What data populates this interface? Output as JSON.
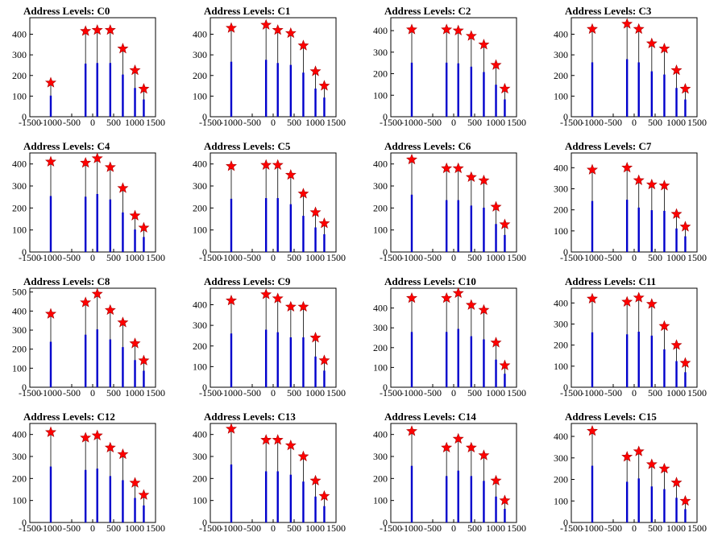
{
  "chart_data": [
    {
      "type": "bar",
      "title": "Address Levels: C0",
      "xlim": [
        -1500,
        1500
      ],
      "ylim": [
        0,
        480
      ],
      "yticks": [
        0,
        100,
        200,
        300,
        400
      ],
      "xticks": [
        -1500,
        -1000,
        -500,
        0,
        500,
        1000,
        1500
      ],
      "peaks": [
        {
          "x": -1000,
          "y": 165
        },
        {
          "x": -170,
          "y": 415
        },
        {
          "x": 110,
          "y": 420
        },
        {
          "x": 420,
          "y": 420
        },
        {
          "x": 720,
          "y": 330
        },
        {
          "x": 1010,
          "y": 225
        },
        {
          "x": 1220,
          "y": 135
        }
      ]
    },
    {
      "type": "bar",
      "title": "Address Levels: C1",
      "xlim": [
        -1500,
        1500
      ],
      "ylim": [
        0,
        480
      ],
      "yticks": [
        0,
        100,
        200,
        300,
        400
      ],
      "xticks": [
        -1500,
        -1000,
        -500,
        0,
        500,
        1000,
        1500
      ],
      "peaks": [
        {
          "x": -1000,
          "y": 430
        },
        {
          "x": -170,
          "y": 445
        },
        {
          "x": 110,
          "y": 420
        },
        {
          "x": 420,
          "y": 405
        },
        {
          "x": 720,
          "y": 345
        },
        {
          "x": 1010,
          "y": 220
        },
        {
          "x": 1220,
          "y": 150
        }
      ]
    },
    {
      "type": "bar",
      "title": "Address Levels: C2",
      "xlim": [
        -1500,
        1500
      ],
      "ylim": [
        0,
        460
      ],
      "yticks": [
        0,
        100,
        200,
        300,
        400
      ],
      "xticks": [
        -1500,
        -1000,
        -500,
        0,
        500,
        1000,
        1500
      ],
      "peaks": [
        {
          "x": -1000,
          "y": 405
        },
        {
          "x": -170,
          "y": 405
        },
        {
          "x": 110,
          "y": 400
        },
        {
          "x": 420,
          "y": 375
        },
        {
          "x": 720,
          "y": 335
        },
        {
          "x": 1010,
          "y": 240
        },
        {
          "x": 1220,
          "y": 130
        }
      ]
    },
    {
      "type": "bar",
      "title": "Address Levels: C3",
      "xlim": [
        -1500,
        1500
      ],
      "ylim": [
        0,
        480
      ],
      "yticks": [
        0,
        100,
        200,
        300,
        400
      ],
      "xticks": [
        -1500,
        -1000,
        -500,
        0,
        500,
        1000,
        1500
      ],
      "peaks": [
        {
          "x": -1000,
          "y": 425
        },
        {
          "x": -170,
          "y": 450
        },
        {
          "x": 110,
          "y": 425
        },
        {
          "x": 420,
          "y": 355
        },
        {
          "x": 720,
          "y": 330
        },
        {
          "x": 1010,
          "y": 225
        },
        {
          "x": 1220,
          "y": 135
        }
      ]
    },
    {
      "type": "bar",
      "title": "Address Levels: C4",
      "xlim": [
        -1500,
        1500
      ],
      "ylim": [
        0,
        450
      ],
      "yticks": [
        0,
        100,
        200,
        300,
        400
      ],
      "xticks": [
        -1500,
        -1000,
        -500,
        0,
        500,
        1000,
        1500
      ],
      "peaks": [
        {
          "x": -1000,
          "y": 410
        },
        {
          "x": -170,
          "y": 405
        },
        {
          "x": 110,
          "y": 425
        },
        {
          "x": 420,
          "y": 385
        },
        {
          "x": 720,
          "y": 290
        },
        {
          "x": 1010,
          "y": 165
        },
        {
          "x": 1220,
          "y": 110
        }
      ]
    },
    {
      "type": "bar",
      "title": "Address Levels: C5",
      "xlim": [
        -1500,
        1500
      ],
      "ylim": [
        0,
        450
      ],
      "yticks": [
        0,
        100,
        200,
        300,
        400
      ],
      "xticks": [
        -1500,
        -1000,
        -500,
        0,
        500,
        1000,
        1500
      ],
      "peaks": [
        {
          "x": -1000,
          "y": 390
        },
        {
          "x": -170,
          "y": 395
        },
        {
          "x": 110,
          "y": 395
        },
        {
          "x": 420,
          "y": 350
        },
        {
          "x": 720,
          "y": 265
        },
        {
          "x": 1010,
          "y": 180
        },
        {
          "x": 1220,
          "y": 130
        }
      ]
    },
    {
      "type": "bar",
      "title": "Address Levels: C6",
      "xlim": [
        -1500,
        1500
      ],
      "ylim": [
        0,
        450
      ],
      "yticks": [
        0,
        100,
        200,
        300,
        400
      ],
      "xticks": [
        -1500,
        -1000,
        -500,
        0,
        500,
        1000,
        1500
      ],
      "peaks": [
        {
          "x": -1000,
          "y": 420
        },
        {
          "x": -170,
          "y": 380
        },
        {
          "x": 110,
          "y": 380
        },
        {
          "x": 420,
          "y": 340
        },
        {
          "x": 720,
          "y": 325
        },
        {
          "x": 1010,
          "y": 205
        },
        {
          "x": 1220,
          "y": 125
        }
      ]
    },
    {
      "type": "bar",
      "title": "Address Levels: C7",
      "xlim": [
        -1500,
        1500
      ],
      "ylim": [
        0,
        470
      ],
      "yticks": [
        0,
        100,
        200,
        300,
        400
      ],
      "xticks": [
        -1500,
        -1000,
        -500,
        0,
        500,
        1000,
        1500
      ],
      "peaks": [
        {
          "x": -1000,
          "y": 390
        },
        {
          "x": -170,
          "y": 400
        },
        {
          "x": 110,
          "y": 340
        },
        {
          "x": 420,
          "y": 320
        },
        {
          "x": 720,
          "y": 315
        },
        {
          "x": 1010,
          "y": 180
        },
        {
          "x": 1220,
          "y": 120
        }
      ]
    },
    {
      "type": "bar",
      "title": "Address Levels: C8",
      "xlim": [
        -1500,
        1500
      ],
      "ylim": [
        0,
        520
      ],
      "yticks": [
        0,
        100,
        200,
        300,
        400,
        500
      ],
      "xticks": [
        -1500,
        -1000,
        -500,
        0,
        500,
        1000,
        1500
      ],
      "peaks": [
        {
          "x": -1000,
          "y": 385
        },
        {
          "x": -170,
          "y": 445
        },
        {
          "x": 110,
          "y": 490
        },
        {
          "x": 420,
          "y": 405
        },
        {
          "x": 720,
          "y": 340
        },
        {
          "x": 1010,
          "y": 230
        },
        {
          "x": 1220,
          "y": 140
        }
      ]
    },
    {
      "type": "bar",
      "title": "Address Levels: C9",
      "xlim": [
        -1500,
        1500
      ],
      "ylim": [
        0,
        480
      ],
      "yticks": [
        0,
        100,
        200,
        300,
        400
      ],
      "xticks": [
        -1500,
        -1000,
        -500,
        0,
        500,
        1000,
        1500
      ],
      "peaks": [
        {
          "x": -1000,
          "y": 420
        },
        {
          "x": -170,
          "y": 450
        },
        {
          "x": 110,
          "y": 430
        },
        {
          "x": 420,
          "y": 390
        },
        {
          "x": 720,
          "y": 390
        },
        {
          "x": 1010,
          "y": 240
        },
        {
          "x": 1220,
          "y": 130
        }
      ]
    },
    {
      "type": "bar",
      "title": "Address Levels: C10",
      "xlim": [
        -1500,
        1500
      ],
      "ylim": [
        0,
        500
      ],
      "yticks": [
        0,
        100,
        200,
        300,
        400
      ],
      "xticks": [
        -1500,
        -1000,
        -500,
        0,
        500,
        1000,
        1500
      ],
      "peaks": [
        {
          "x": -1000,
          "y": 450
        },
        {
          "x": -170,
          "y": 450
        },
        {
          "x": 110,
          "y": 475
        },
        {
          "x": 420,
          "y": 415
        },
        {
          "x": 720,
          "y": 390
        },
        {
          "x": 1010,
          "y": 225
        },
        {
          "x": 1220,
          "y": 110
        }
      ]
    },
    {
      "type": "bar",
      "title": "Address Levels: C11",
      "xlim": [
        -1500,
        1500
      ],
      "ylim": [
        0,
        470
      ],
      "yticks": [
        0,
        100,
        200,
        300,
        400
      ],
      "xticks": [
        -1500,
        -1000,
        -500,
        0,
        500,
        1000,
        1500
      ],
      "peaks": [
        {
          "x": -1000,
          "y": 420
        },
        {
          "x": -170,
          "y": 405
        },
        {
          "x": 110,
          "y": 425
        },
        {
          "x": 420,
          "y": 395
        },
        {
          "x": 720,
          "y": 290
        },
        {
          "x": 1010,
          "y": 200
        },
        {
          "x": 1220,
          "y": 115
        }
      ]
    },
    {
      "type": "bar",
      "title": "Address Levels: C12",
      "xlim": [
        -1500,
        1500
      ],
      "ylim": [
        0,
        450
      ],
      "yticks": [
        0,
        100,
        200,
        300,
        400
      ],
      "xticks": [
        -1500,
        -1000,
        -500,
        0,
        500,
        1000,
        1500
      ],
      "peaks": [
        {
          "x": -1000,
          "y": 410
        },
        {
          "x": -170,
          "y": 385
        },
        {
          "x": 110,
          "y": 395
        },
        {
          "x": 420,
          "y": 340
        },
        {
          "x": 720,
          "y": 310
        },
        {
          "x": 1010,
          "y": 180
        },
        {
          "x": 1220,
          "y": 125
        }
      ]
    },
    {
      "type": "bar",
      "title": "Address Levels: C13",
      "xlim": [
        -1500,
        1500
      ],
      "ylim": [
        0,
        450
      ],
      "yticks": [
        0,
        100,
        200,
        300,
        400
      ],
      "xticks": [
        -1500,
        -1000,
        -500,
        0,
        500,
        1000,
        1500
      ],
      "peaks": [
        {
          "x": -1000,
          "y": 425
        },
        {
          "x": -170,
          "y": 375
        },
        {
          "x": 110,
          "y": 375
        },
        {
          "x": 420,
          "y": 350
        },
        {
          "x": 720,
          "y": 300
        },
        {
          "x": 1010,
          "y": 190
        },
        {
          "x": 1220,
          "y": 120
        }
      ]
    },
    {
      "type": "bar",
      "title": "Address Levels: C14",
      "xlim": [
        -1500,
        1500
      ],
      "ylim": [
        0,
        450
      ],
      "yticks": [
        0,
        100,
        200,
        300,
        400
      ],
      "xticks": [
        -1500,
        -1000,
        -500,
        0,
        500,
        1000,
        1500
      ],
      "peaks": [
        {
          "x": -1000,
          "y": 415
        },
        {
          "x": -170,
          "y": 340
        },
        {
          "x": 110,
          "y": 380
        },
        {
          "x": 420,
          "y": 340
        },
        {
          "x": 720,
          "y": 305
        },
        {
          "x": 1010,
          "y": 190
        },
        {
          "x": 1220,
          "y": 100
        }
      ]
    },
    {
      "type": "bar",
      "title": "Address Levels: C15",
      "xlim": [
        -1500,
        1500
      ],
      "ylim": [
        0,
        460
      ],
      "yticks": [
        0,
        100,
        200,
        300,
        400
      ],
      "xticks": [
        -1500,
        -1000,
        -500,
        0,
        500,
        1000,
        1500
      ],
      "peaks": [
        {
          "x": -1000,
          "y": 425
        },
        {
          "x": -170,
          "y": 305
        },
        {
          "x": 110,
          "y": 330
        },
        {
          "x": 420,
          "y": 270
        },
        {
          "x": 720,
          "y": 250
        },
        {
          "x": 1010,
          "y": 185
        },
        {
          "x": 1220,
          "y": 100
        }
      ]
    }
  ],
  "colors": {
    "bar": "#0000cc",
    "marker_fill": "#ff0000",
    "axis": "#000000"
  },
  "marker_icon": "red-star-marker-icon"
}
